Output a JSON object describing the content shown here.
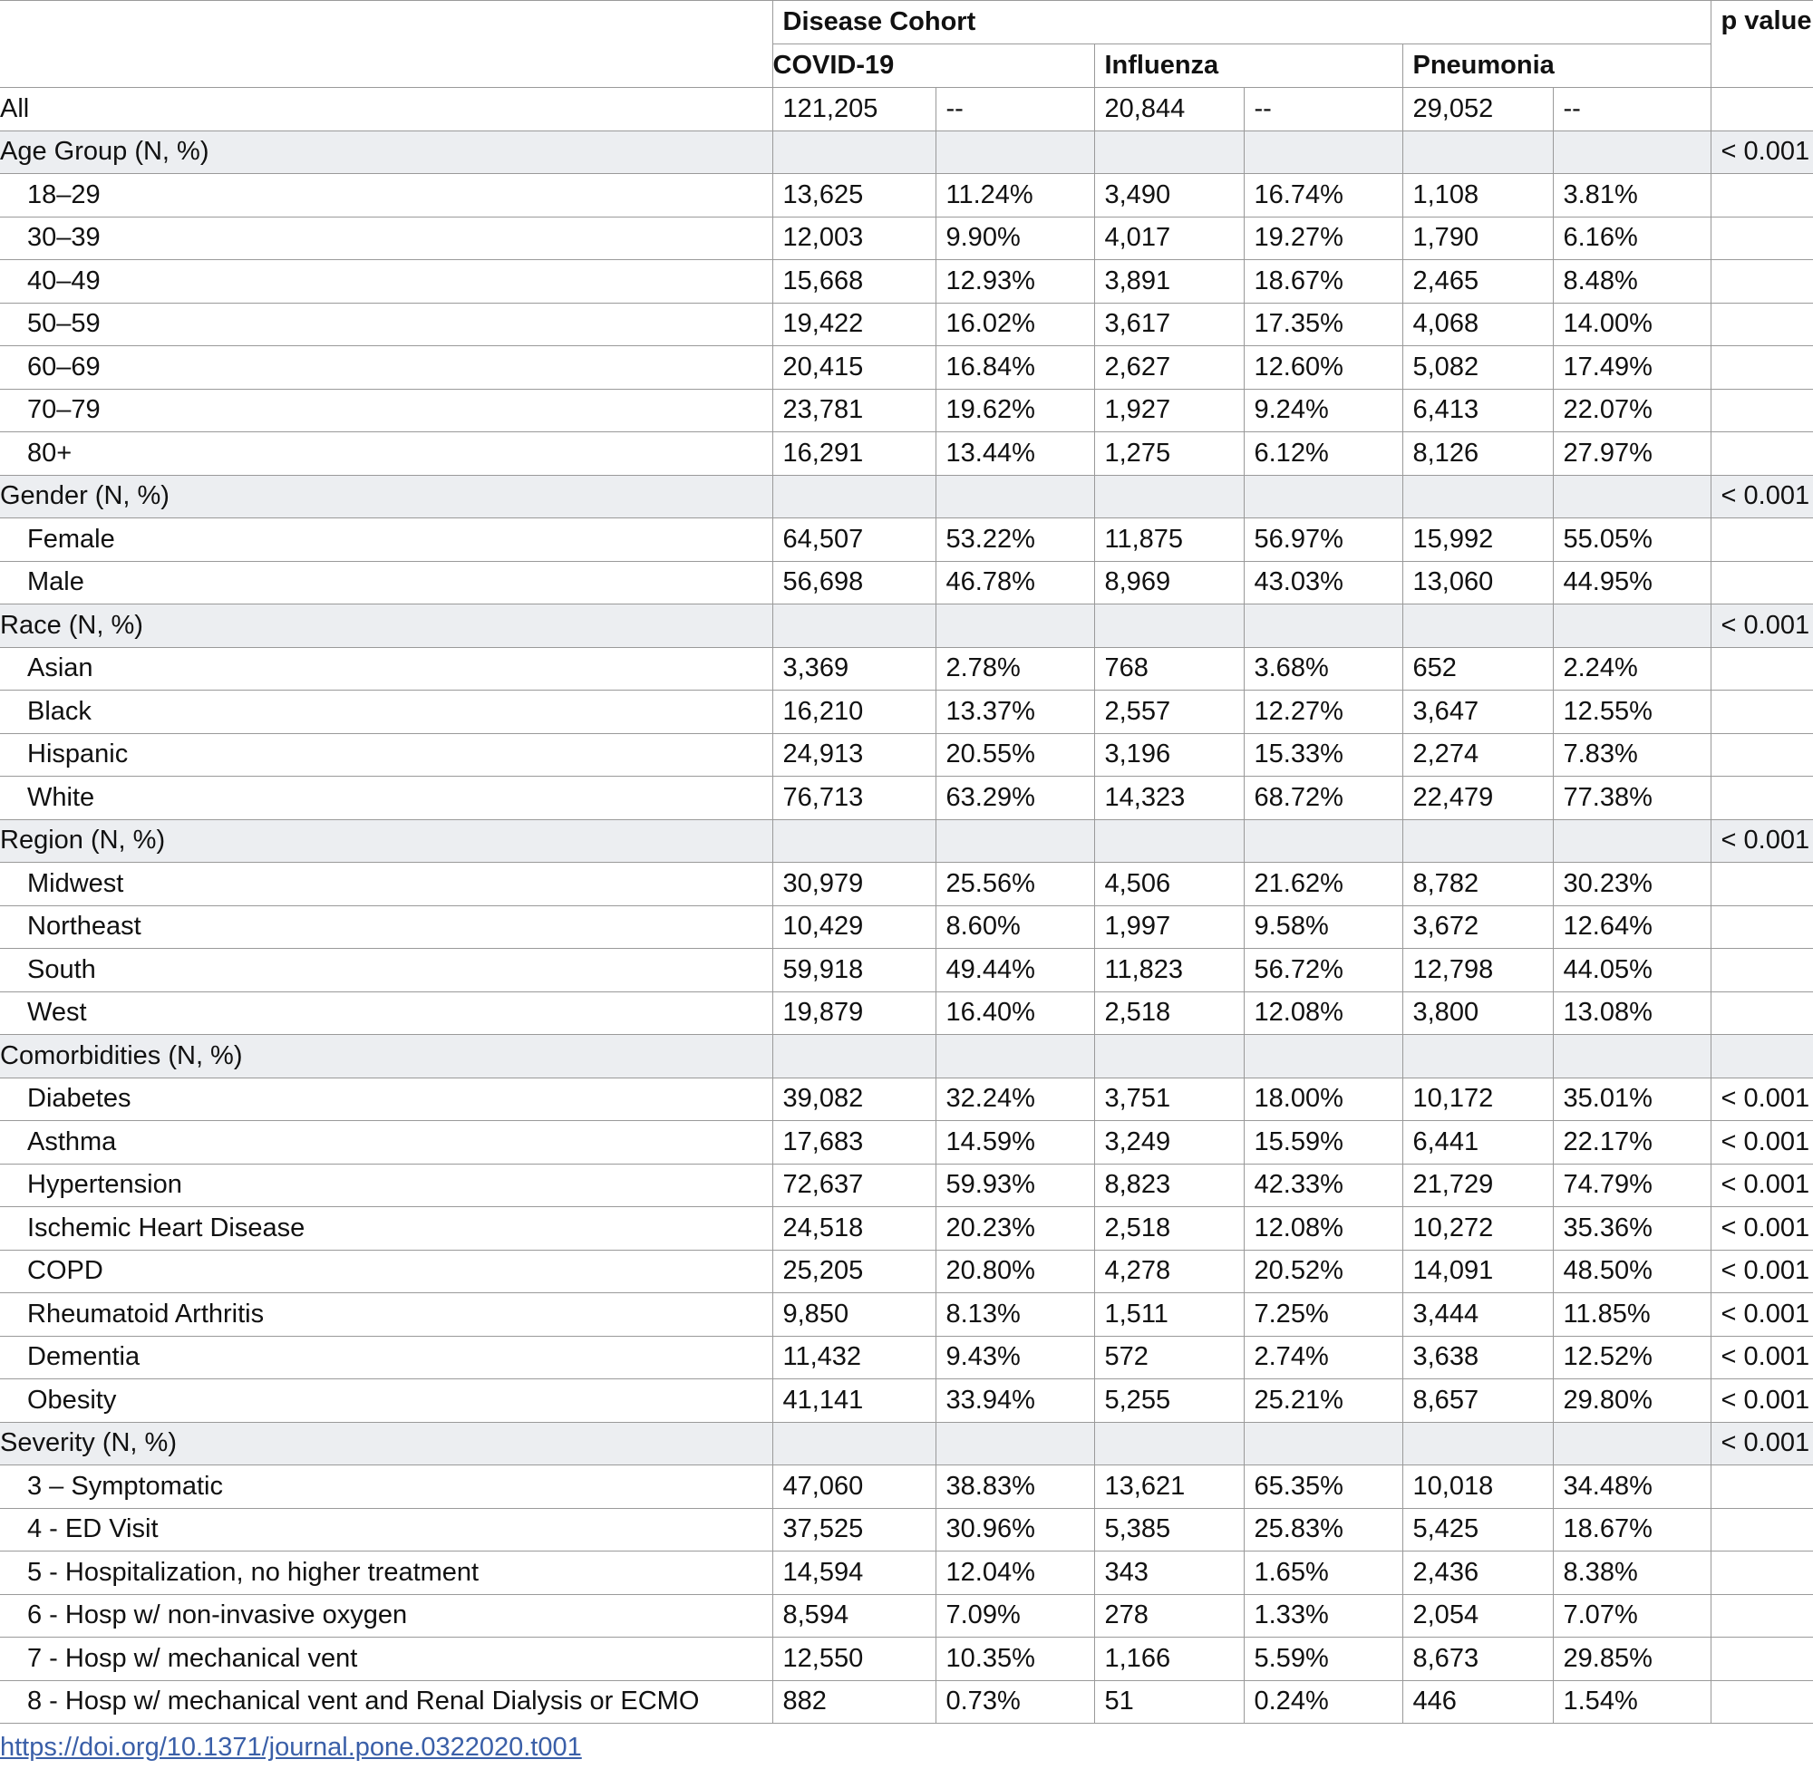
{
  "header": {
    "label": "Disease Cohort",
    "p_label": "p value",
    "cohorts": [
      "COVID-19",
      "Influenza",
      "Pneumonia"
    ]
  },
  "all": {
    "label": "All",
    "values": [
      "121,205",
      "--",
      "20,844",
      "--",
      "29,052",
      "--"
    ]
  },
  "groups": [
    {
      "label": "Age Group (N, %)",
      "p": "< 0.001",
      "rows": [
        {
          "label": "18–29",
          "values": [
            "13,625",
            "11.24%",
            "3,490",
            "16.74%",
            "1,108",
            "3.81%"
          ]
        },
        {
          "label": "30–39",
          "values": [
            "12,003",
            "9.90%",
            "4,017",
            "19.27%",
            "1,790",
            "6.16%"
          ]
        },
        {
          "label": "40–49",
          "values": [
            "15,668",
            "12.93%",
            "3,891",
            "18.67%",
            "2,465",
            "8.48%"
          ]
        },
        {
          "label": "50–59",
          "values": [
            "19,422",
            "16.02%",
            "3,617",
            "17.35%",
            "4,068",
            "14.00%"
          ]
        },
        {
          "label": "60–69",
          "values": [
            "20,415",
            "16.84%",
            "2,627",
            "12.60%",
            "5,082",
            "17.49%"
          ]
        },
        {
          "label": "70–79",
          "values": [
            "23,781",
            "19.62%",
            "1,927",
            "9.24%",
            "6,413",
            "22.07%"
          ]
        },
        {
          "label": "80+",
          "values": [
            "16,291",
            "13.44%",
            "1,275",
            "6.12%",
            "8,126",
            "27.97%"
          ]
        }
      ]
    },
    {
      "label": "Gender (N, %)",
      "p": "< 0.001",
      "rows": [
        {
          "label": "Female",
          "values": [
            "64,507",
            "53.22%",
            "11,875",
            "56.97%",
            "15,992",
            "55.05%"
          ]
        },
        {
          "label": "Male",
          "values": [
            "56,698",
            "46.78%",
            "8,969",
            "43.03%",
            "13,060",
            "44.95%"
          ]
        }
      ]
    },
    {
      "label": "Race (N, %)",
      "p": "< 0.001",
      "rows": [
        {
          "label": "Asian",
          "values": [
            "3,369",
            "2.78%",
            "768",
            "3.68%",
            "652",
            "2.24%"
          ]
        },
        {
          "label": "Black",
          "values": [
            "16,210",
            "13.37%",
            "2,557",
            "12.27%",
            "3,647",
            "12.55%"
          ]
        },
        {
          "label": "Hispanic",
          "values": [
            "24,913",
            "20.55%",
            "3,196",
            "15.33%",
            "2,274",
            "7.83%"
          ]
        },
        {
          "label": "White",
          "values": [
            "76,713",
            "63.29%",
            "14,323",
            "68.72%",
            "22,479",
            "77.38%"
          ]
        }
      ]
    },
    {
      "label": "Region (N, %)",
      "p": "< 0.001",
      "rows": [
        {
          "label": "Midwest",
          "values": [
            "30,979",
            "25.56%",
            "4,506",
            "21.62%",
            "8,782",
            "30.23%"
          ]
        },
        {
          "label": "Northeast",
          "values": [
            "10,429",
            "8.60%",
            "1,997",
            "9.58%",
            "3,672",
            "12.64%"
          ]
        },
        {
          "label": "South",
          "values": [
            "59,918",
            "49.44%",
            "11,823",
            "56.72%",
            "12,798",
            "44.05%"
          ]
        },
        {
          "label": "West",
          "values": [
            "19,879",
            "16.40%",
            "2,518",
            "12.08%",
            "3,800",
            "13.08%"
          ]
        }
      ]
    },
    {
      "label": "Comorbidities (N, %)",
      "rows": [
        {
          "label": "Diabetes",
          "values": [
            "39,082",
            "32.24%",
            "3,751",
            "18.00%",
            "10,172",
            "35.01%"
          ],
          "p": "< 0.001"
        },
        {
          "label": "Asthma",
          "values": [
            "17,683",
            "14.59%",
            "3,249",
            "15.59%",
            "6,441",
            "22.17%"
          ],
          "p": "< 0.001"
        },
        {
          "label": "Hypertension",
          "values": [
            "72,637",
            "59.93%",
            "8,823",
            "42.33%",
            "21,729",
            "74.79%"
          ],
          "p": "< 0.001"
        },
        {
          "label": "Ischemic Heart Disease",
          "values": [
            "24,518",
            "20.23%",
            "2,518",
            "12.08%",
            "10,272",
            "35.36%"
          ],
          "p": "< 0.001"
        },
        {
          "label": "COPD",
          "values": [
            "25,205",
            "20.80%",
            "4,278",
            "20.52%",
            "14,091",
            "48.50%"
          ],
          "p": "< 0.001"
        },
        {
          "label": "Rheumatoid Arthritis",
          "values": [
            "9,850",
            "8.13%",
            "1,511",
            "7.25%",
            "3,444",
            "11.85%"
          ],
          "p": "< 0.001"
        },
        {
          "label": "Dementia",
          "values": [
            "11,432",
            "9.43%",
            "572",
            "2.74%",
            "3,638",
            "12.52%"
          ],
          "p": "< 0.001"
        },
        {
          "label": "Obesity",
          "values": [
            "41,141",
            "33.94%",
            "5,255",
            "25.21%",
            "8,657",
            "29.80%"
          ],
          "p": "< 0.001"
        }
      ]
    },
    {
      "label": "Severity (N, %)",
      "p": "< 0.001",
      "rows": [
        {
          "label": "3 – Symptomatic",
          "values": [
            "47,060",
            "38.83%",
            "13,621",
            "65.35%",
            "10,018",
            "34.48%"
          ]
        },
        {
          "label": "4 - ED Visit",
          "values": [
            "37,525",
            "30.96%",
            "5,385",
            "25.83%",
            "5,425",
            "18.67%"
          ]
        },
        {
          "label": "5 - Hospitalization, no higher treatment",
          "values": [
            "14,594",
            "12.04%",
            "343",
            "1.65%",
            "2,436",
            "8.38%"
          ]
        },
        {
          "label": "6 - Hosp w/ non-invasive oxygen",
          "values": [
            "8,594",
            "7.09%",
            "278",
            "1.33%",
            "2,054",
            "7.07%"
          ]
        },
        {
          "label": "7 - Hosp w/ mechanical vent",
          "values": [
            "12,550",
            "10.35%",
            "1,166",
            "5.59%",
            "8,673",
            "29.85%"
          ]
        },
        {
          "label": "8 - Hosp w/ mechanical vent and Renal Dialysis or ECMO",
          "values": [
            "882",
            "0.73%",
            "51",
            "0.24%",
            "446",
            "1.54%"
          ]
        }
      ]
    }
  ],
  "doi": "https://doi.org/10.1371/journal.pone.0322020.t001"
}
